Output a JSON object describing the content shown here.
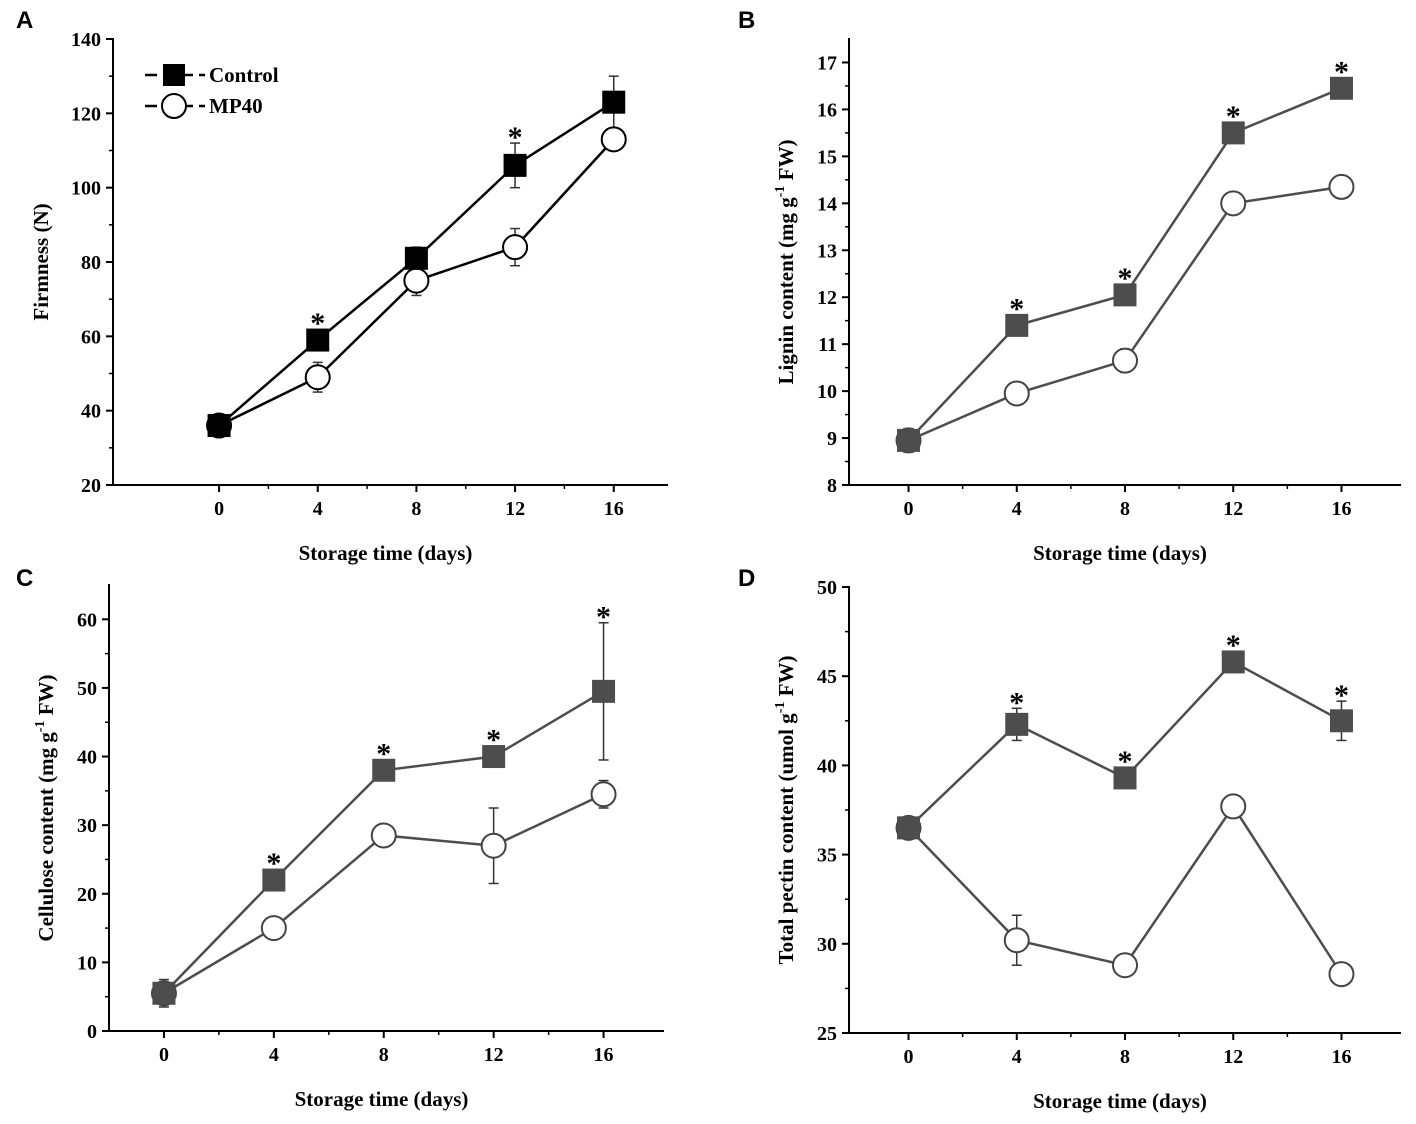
{
  "legend": {
    "control": "Control",
    "mp40": "MP40"
  },
  "chart_data": [
    {
      "panel": "A",
      "type": "line",
      "xlabel": "Storage time (days)",
      "ylabel": "Firmness (N)",
      "x": [
        0,
        4,
        8,
        12,
        16
      ],
      "xlim": [
        -4.3,
        18.2
      ],
      "ylim": [
        20,
        140
      ],
      "yticks": [
        20,
        40,
        60,
        80,
        100,
        120,
        140
      ],
      "legend_position": "top-left",
      "series": [
        {
          "name": "Control",
          "marker": "filled-square",
          "values": [
            36,
            59,
            81,
            106,
            123
          ],
          "errors": [
            1,
            2,
            3,
            6,
            7
          ],
          "significant": [
            false,
            true,
            false,
            true,
            false
          ]
        },
        {
          "name": "MP40",
          "marker": "open-circle",
          "values": [
            36,
            49,
            75,
            84,
            113
          ],
          "errors": [
            1,
            4,
            4,
            5,
            3
          ],
          "significant": [
            false,
            false,
            false,
            false,
            false
          ]
        }
      ]
    },
    {
      "panel": "B",
      "type": "line",
      "xlabel": "Storage time (days)",
      "ylabel": "Lignin content (mg g-1 FW)",
      "ylabel_main": "Lignin content (mg g",
      "ylabel_sup": "-1",
      "ylabel_end": " FW)",
      "x": [
        0,
        4,
        8,
        12,
        16
      ],
      "xlim": [
        -2.2,
        18.2
      ],
      "ylim": [
        8,
        17.5
      ],
      "yticks": [
        8,
        9,
        10,
        11,
        12,
        13,
        14,
        15,
        16,
        17
      ],
      "series": [
        {
          "name": "Control",
          "marker": "filled-square",
          "values": [
            8.95,
            11.4,
            12.05,
            15.5,
            16.45
          ],
          "errors": [
            0.1,
            0.1,
            0.1,
            0.1,
            0.1
          ],
          "significant": [
            false,
            true,
            true,
            true,
            true
          ]
        },
        {
          "name": "MP40",
          "marker": "open-circle",
          "values": [
            8.95,
            9.95,
            10.65,
            14.0,
            14.35
          ],
          "errors": [
            0.25,
            0.2,
            0.25,
            0.2,
            0.2
          ],
          "significant": [
            false,
            false,
            false,
            false,
            false
          ]
        }
      ]
    },
    {
      "panel": "C",
      "type": "line",
      "xlabel": "Storage time (days)",
      "ylabel": "Cellulose content (mg g-1 FW)",
      "ylabel_main": "Cellulose content (mg g",
      "ylabel_sup": "-1",
      "ylabel_end": " FW)",
      "x": [
        0,
        4,
        8,
        12,
        16
      ],
      "xlim": [
        -2,
        18.2
      ],
      "ylim": [
        0,
        65
      ],
      "yticks": [
        0,
        10,
        20,
        30,
        40,
        50,
        60
      ],
      "series": [
        {
          "name": "Control",
          "marker": "filled-square",
          "values": [
            5.5,
            22,
            38,
            40,
            49.5
          ],
          "errors": [
            1,
            1,
            1,
            1,
            10
          ],
          "significant": [
            false,
            true,
            true,
            true,
            true
          ]
        },
        {
          "name": "MP40",
          "marker": "open-circle",
          "values": [
            5.5,
            15,
            28.5,
            27,
            34.5
          ],
          "errors": [
            2,
            1.5,
            1.5,
            5.5,
            2
          ],
          "significant": [
            false,
            false,
            false,
            false,
            false
          ]
        }
      ]
    },
    {
      "panel": "D",
      "type": "line",
      "xlabel": "Storage time (days)",
      "ylabel": "Total pectin content (umol g-1 FW)",
      "ylabel_main": "Total pectin content (umol g",
      "ylabel_sup": "-1",
      "ylabel_end": " FW)",
      "x": [
        0,
        4,
        8,
        12,
        16
      ],
      "xlim": [
        -2.2,
        18.2
      ],
      "ylim": [
        25,
        50
      ],
      "yticks": [
        25,
        30,
        35,
        40,
        45,
        50
      ],
      "series": [
        {
          "name": "Control",
          "marker": "filled-square",
          "values": [
            36.5,
            42.3,
            39.3,
            45.8,
            42.5
          ],
          "errors": [
            0.5,
            0.9,
            0.5,
            0.3,
            1.1
          ],
          "significant": [
            false,
            true,
            true,
            true,
            true
          ]
        },
        {
          "name": "MP40",
          "marker": "open-circle",
          "values": [
            36.5,
            30.2,
            28.8,
            37.7,
            28.3
          ],
          "errors": [
            0.6,
            1.4,
            0.5,
            0.3,
            0.5
          ],
          "significant": [
            false,
            false,
            false,
            false,
            false
          ]
        }
      ]
    }
  ],
  "significance_marker": "*"
}
